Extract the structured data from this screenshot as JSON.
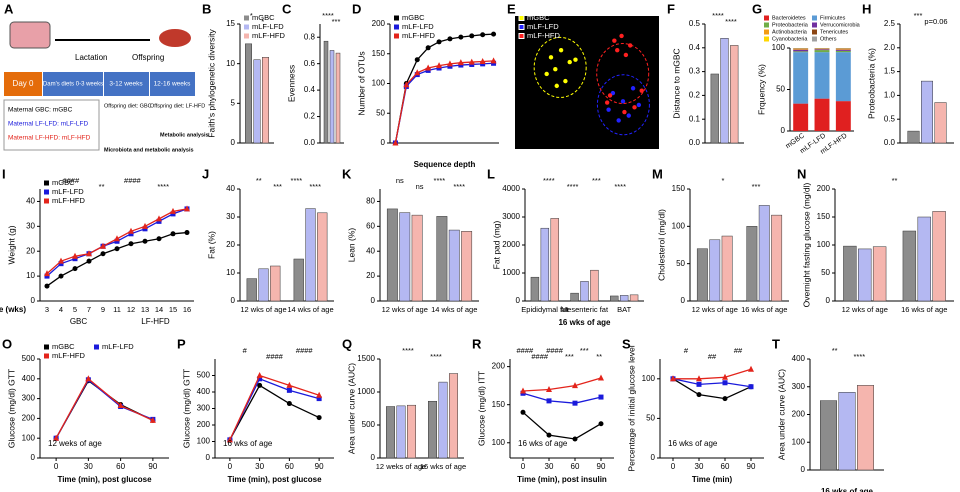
{
  "diagram": {
    "label": "A",
    "lactation": "Lactation",
    "offspring": "Offspring",
    "day0": "Day 0",
    "dam_diets": "Dam's diets 0-3 weeks",
    "weeks_3_12": "3-12 weeks",
    "weeks_12_16": "12-16 weeks",
    "groups": [
      "Maternal GBC: mGBC",
      "Maternal LF-LFD: mLF-LFD",
      "Maternal LF-HFD: mLF-HFD"
    ],
    "offspring_diet_1": "Offspring diet: GBC",
    "offspring_diet_2": "Offspring diet: LF-HFD",
    "analysis_1": "Microbiota and metabolic analysis",
    "analysis_2": "Metabolic analysis"
  },
  "chart_data": [
    {
      "type": "bar",
      "label": "B",
      "ylabel": "Faith's phylogenetic diversity",
      "categories": [
        null
      ],
      "legend": "upper left",
      "series": [
        {
          "name": "mGBC",
          "color": "#8c8c8c",
          "values": [
            12.5
          ]
        },
        {
          "name": "mLF-LFD",
          "color": "#b4b8f2",
          "values": [
            10.5
          ]
        },
        {
          "name": "mLF-HFD",
          "color": "#f5b5ae",
          "values": [
            10.8
          ]
        }
      ],
      "ylim": [
        0,
        15
      ],
      "yticks": [
        0,
        5,
        10,
        15
      ],
      "annotations": [
        "*",
        "*"
      ]
    },
    {
      "type": "bar",
      "label": "C",
      "ylabel": "Evenness",
      "categories": [
        null
      ],
      "series": [
        {
          "color": "#8c8c8c",
          "values": [
            0.77
          ]
        },
        {
          "color": "#b4b8f2",
          "values": [
            0.7
          ]
        },
        {
          "color": "#f5b5ae",
          "values": [
            0.68
          ]
        }
      ],
      "ylim": [
        0,
        0.9
      ],
      "yticks": [
        {
          "value": 0,
          "label": "0.0"
        },
        0.2,
        0.4,
        0.6,
        0.8
      ],
      "annotations": [
        "****",
        "***"
      ]
    },
    {
      "type": "line",
      "label": "D",
      "ylabel": "Number of OTUs",
      "xlabel": "Sequence depth",
      "legend": "upper left",
      "categories": [
        null,
        null,
        null,
        null,
        null,
        null,
        null,
        null,
        null,
        null
      ],
      "series": [
        {
          "name": "mGBC",
          "color": "#000000",
          "marker": "circle",
          "values": [
            0,
            100,
            140,
            160,
            170,
            175,
            178,
            180,
            182,
            183
          ]
        },
        {
          "name": "mLF-LFD",
          "color": "#1a1adb",
          "marker": "square",
          "values": [
            0,
            95,
            115,
            122,
            126,
            129,
            131,
            132,
            133,
            134
          ]
        },
        {
          "name": "mLF-HFD",
          "color": "#e3241b",
          "marker": "triangle",
          "values": [
            0,
            98,
            118,
            126,
            130,
            133,
            135,
            136,
            137,
            138
          ]
        }
      ],
      "ylim": [
        0,
        200
      ],
      "yticks": [
        0,
        50,
        100,
        150,
        200
      ]
    },
    {
      "type": "scatter",
      "label": "E",
      "legend": "upper left",
      "series": [
        {
          "name": "mGBC",
          "color": "#ffff00",
          "x": [
            2.5,
            3.2,
            2.8,
            3.8,
            2.2,
            3.5,
            4.2,
            2.9
          ],
          "y": [
            7.2,
            7.8,
            6.2,
            6.8,
            5.8,
            5.2,
            7.0,
            4.8
          ]
        },
        {
          "name": "mLF-LFD",
          "color": "#2222ff",
          "x": [
            6.8,
            7.5,
            8.2,
            6.5,
            7.9,
            8.6,
            7.2
          ],
          "y": [
            4.2,
            3.5,
            4.6,
            2.8,
            2.3,
            3.2,
            1.9
          ]
        },
        {
          "name": "mLF-HFD",
          "color": "#ff2020",
          "x": [
            6.9,
            7.4,
            8.0,
            7.7,
            7.1,
            6.6,
            8.3,
            7.6,
            6.4,
            8.8
          ],
          "y": [
            8.6,
            9.0,
            8.2,
            7.4,
            7.8,
            4.0,
            3.0,
            2.6,
            3.4,
            4.4
          ]
        }
      ],
      "xlim": [
        0,
        10
      ],
      "ylim": [
        0,
        10
      ]
    },
    {
      "type": "bar",
      "label": "F",
      "ylabel": "Distance to mGBC",
      "categories": [
        null
      ],
      "series": [
        {
          "color": "#8c8c8c",
          "values": [
            0.29
          ]
        },
        {
          "color": "#b4b8f2",
          "values": [
            0.44
          ]
        },
        {
          "color": "#f5b5ae",
          "values": [
            0.41
          ]
        }
      ],
      "ylim": [
        0,
        0.5
      ],
      "yticks": [
        {
          "value": 0,
          "label": "0.0"
        },
        0.1,
        0.2,
        0.3,
        0.4,
        0.5
      ],
      "annotations": [
        "****",
        "****"
      ]
    },
    {
      "type": "stacked_bar",
      "label": "G",
      "ylabel": "Frquency (%)",
      "categories": [
        "mGBC",
        "mLF-LFD",
        "mLF-HFD"
      ],
      "legend": "top",
      "series": [
        {
          "name": "Bacteroidetes",
          "color": "#e02020",
          "values": [
            33,
            39,
            36
          ]
        },
        {
          "name": "Firmicutes",
          "color": "#5b9bd5",
          "values": [
            62,
            56,
            59
          ]
        },
        {
          "name": "Proteobacteria",
          "color": "#70ad47",
          "values": [
            1,
            2.5,
            1.5
          ]
        },
        {
          "name": "Verrucomicrobia",
          "color": "#7030a0",
          "values": [
            2,
            1,
            1.5
          ]
        },
        {
          "name": "Actinobacteria",
          "color": "#f39c12",
          "values": [
            1,
            0.5,
            1
          ]
        },
        {
          "name": "Tenericutes",
          "color": "#8b4513",
          "values": [
            0.5,
            0.5,
            0.5
          ]
        },
        {
          "name": "Cyanobacteria",
          "color": "#ffd700",
          "values": [
            0.3,
            0.3,
            0.3
          ]
        },
        {
          "name": "Others",
          "color": "#a0a0a0",
          "values": [
            0.2,
            0.2,
            0.2
          ]
        }
      ],
      "ylim": [
        0,
        100
      ],
      "yticks": [
        0,
        50,
        100
      ]
    },
    {
      "type": "bar",
      "label": "H",
      "ylabel": "Proteobacteria (%)",
      "categories": [
        null
      ],
      "series": [
        {
          "color": "#8c8c8c",
          "values": [
            0.25
          ]
        },
        {
          "color": "#b4b8f2",
          "values": [
            1.3
          ]
        },
        {
          "color": "#f5b5ae",
          "values": [
            0.85
          ]
        }
      ],
      "ylim": [
        0,
        2.5
      ],
      "yticks": [
        {
          "value": 0,
          "label": "0.0"
        },
        0.5,
        {
          "value": 1,
          "label": "1.0"
        },
        1.5,
        {
          "value": 2,
          "label": "2.0"
        },
        2.5
      ],
      "annotations": [
        "***",
        "p=0.06"
      ]
    },
    {
      "type": "line",
      "label": "I",
      "ylabel": "Weight (g)",
      "xlabel": "Age (wks)",
      "legend": "upper left",
      "categories": [
        "3",
        "4",
        "5",
        "7",
        "9",
        "11",
        "12",
        "13",
        "14",
        "15",
        "16"
      ],
      "xgroups": [
        "GBC",
        "LF-HFD"
      ],
      "series": [
        {
          "name": "mGBC",
          "color": "#000000",
          "marker": "circle",
          "values": [
            6,
            10,
            13,
            16,
            19,
            21,
            23,
            24,
            25,
            27,
            27.5
          ]
        },
        {
          "name": "mLF-LFD",
          "color": "#1a1adb",
          "marker": "square",
          "values": [
            10,
            15,
            17,
            19,
            22,
            24,
            27,
            29,
            32,
            35,
            37
          ]
        },
        {
          "name": "mLF-HFD",
          "color": "#e3241b",
          "marker": "triangle",
          "values": [
            11,
            16,
            18,
            19,
            22,
            25,
            28,
            30,
            33,
            36,
            37
          ]
        }
      ],
      "ylim": [
        0,
        45
      ],
      "yticks": [
        0,
        10,
        20,
        30,
        40
      ],
      "annotations": [
        "####",
        "**",
        "####",
        "****"
      ]
    },
    {
      "type": "bar",
      "label": "J",
      "ylabel": "Fat (%)",
      "categories": [
        "12 wks of age",
        "14 wks of age"
      ],
      "series": [
        {
          "color": "#8c8c8c",
          "values": [
            8,
            15
          ]
        },
        {
          "color": "#b4b8f2",
          "values": [
            11.5,
            33
          ]
        },
        {
          "color": "#f5b5ae",
          "values": [
            12.5,
            31.5
          ]
        }
      ],
      "ylim": [
        0,
        40
      ],
      "yticks": [
        0,
        10,
        20,
        30,
        40
      ],
      "annotations": [
        "**",
        "***",
        "****",
        "****"
      ]
    },
    {
      "type": "bar",
      "label": "K",
      "ylabel": "Lean (%)",
      "categories": [
        "12 wks of age",
        "14 wks of age"
      ],
      "series": [
        {
          "color": "#8c8c8c",
          "values": [
            74,
            68
          ]
        },
        {
          "color": "#b4b8f2",
          "values": [
            71,
            57
          ]
        },
        {
          "color": "#f5b5ae",
          "values": [
            69,
            56
          ]
        }
      ],
      "ylim": [
        0,
        90
      ],
      "yticks": [
        0,
        20,
        40,
        60,
        80
      ],
      "annotations": [
        "ns",
        "ns",
        "****",
        "****"
      ]
    },
    {
      "type": "bar",
      "label": "L",
      "ylabel": "Fat pad (mg)",
      "xlabel": "16 wks of age",
      "categories": [
        "Epididymal fat",
        "Mesenteric fat",
        "BAT"
      ],
      "series": [
        {
          "color": "#8c8c8c",
          "values": [
            850,
            280,
            180
          ]
        },
        {
          "color": "#b4b8f2",
          "values": [
            2600,
            700,
            200
          ]
        },
        {
          "color": "#f5b5ae",
          "values": [
            2950,
            1100,
            220
          ]
        }
      ],
      "ylim": [
        0,
        4000
      ],
      "yticks": [
        0,
        1000,
        2000,
        3000,
        4000
      ],
      "annotations": [
        "****",
        "****",
        "***",
        "****"
      ]
    },
    {
      "type": "bar",
      "label": "M",
      "ylabel": "Cholesterol (mg/dl)",
      "categories": [
        "12 wks of age",
        "16 wks of age"
      ],
      "series": [
        {
          "color": "#8c8c8c",
          "values": [
            70,
            100
          ]
        },
        {
          "color": "#b4b8f2",
          "values": [
            82,
            128
          ]
        },
        {
          "color": "#f5b5ae",
          "values": [
            87,
            115
          ]
        }
      ],
      "ylim": [
        0,
        150
      ],
      "yticks": [
        0,
        50,
        100,
        150
      ],
      "annotations": [
        "*",
        "***"
      ]
    },
    {
      "type": "bar",
      "label": "N",
      "ylabel": "Overnight fasting glucose (mg/dl)",
      "categories": [
        "12 wks of age",
        "16 wks of age"
      ],
      "series": [
        {
          "color": "#8c8c8c",
          "values": [
            98,
            125
          ]
        },
        {
          "color": "#b4b8f2",
          "values": [
            93,
            150
          ]
        },
        {
          "color": "#f5b5ae",
          "values": [
            97,
            160
          ]
        }
      ],
      "ylim": [
        0,
        200
      ],
      "yticks": [
        0,
        50,
        100,
        150,
        200
      ],
      "annotations": [
        "**"
      ]
    },
    {
      "type": "line",
      "label": "O",
      "ylabel": "Glucose (mg/dl) GTT",
      "xlabel": "Time (min), post glucose",
      "legend": "top",
      "notes": [
        "12 weks of age"
      ],
      "x": [
        0,
        30,
        60,
        90
      ],
      "xlim": [
        -15,
        105
      ],
      "xticks": [
        0,
        30,
        60,
        90
      ],
      "series": [
        {
          "name": "mGBC",
          "color": "#000000",
          "marker": "circle",
          "values": [
            100,
            390,
            270,
            190
          ]
        },
        {
          "name": "mLF-LFD",
          "color": "#1a1adb",
          "marker": "square",
          "values": [
            100,
            395,
            260,
            195
          ]
        },
        {
          "name": "mLF-HFD",
          "color": "#e3241b",
          "marker": "triangle",
          "values": [
            100,
            400,
            265,
            190
          ]
        }
      ],
      "ylim": [
        0,
        500
      ],
      "yticks": [
        0,
        100,
        200,
        300,
        400,
        500
      ]
    },
    {
      "type": "line",
      "label": "P",
      "ylabel": "Glucose (mg/dl) GTT",
      "xlabel": "Time (min), post glucose",
      "notes": [
        "16 wks of age"
      ],
      "x": [
        0,
        30,
        60,
        90
      ],
      "xlim": [
        -15,
        105
      ],
      "xticks": [
        0,
        30,
        60,
        90
      ],
      "series": [
        {
          "color": "#000000",
          "marker": "circle",
          "values": [
            110,
            440,
            330,
            245
          ]
        },
        {
          "color": "#1a1adb",
          "marker": "square",
          "values": [
            110,
            480,
            410,
            360
          ]
        },
        {
          "color": "#e3241b",
          "marker": "triangle",
          "values": [
            110,
            500,
            440,
            380
          ]
        }
      ],
      "ylim": [
        0,
        600
      ],
      "yticks": [
        0,
        100,
        200,
        300,
        400,
        500
      ],
      "annotations": [
        "#",
        "####",
        "####"
      ]
    },
    {
      "type": "bar",
      "label": "Q",
      "ylabel": "Area under curve (AUC)",
      "categories": [
        "12 weks of age",
        "16 wks of age"
      ],
      "series": [
        {
          "color": "#8c8c8c",
          "values": [
            780,
            860
          ]
        },
        {
          "color": "#b4b8f2",
          "values": [
            790,
            1150
          ]
        },
        {
          "color": "#f5b5ae",
          "values": [
            800,
            1280
          ]
        }
      ],
      "ylim": [
        0,
        1500
      ],
      "yticks": [
        0,
        500,
        1000,
        1500
      ],
      "annotations": [
        "****",
        "****"
      ]
    },
    {
      "type": "line",
      "label": "R",
      "ylabel": "Glucose (mg/dl) ITT",
      "xlabel": "Time (min), post insulin",
      "notes": [
        "16 wks of age"
      ],
      "x": [
        0,
        30,
        60,
        90
      ],
      "xlim": [
        -15,
        105
      ],
      "xticks": [
        0,
        30,
        60,
        90
      ],
      "series": [
        {
          "color": "#000000",
          "marker": "circle",
          "values": [
            140,
            110,
            105,
            125
          ]
        },
        {
          "color": "#1a1adb",
          "marker": "square",
          "values": [
            165,
            155,
            152,
            160
          ]
        },
        {
          "color": "#e3241b",
          "marker": "triangle",
          "values": [
            168,
            170,
            175,
            185
          ]
        }
      ],
      "ylim": [
        80,
        210
      ],
      "yticks": [
        100,
        150,
        200
      ],
      "annotations": [
        "####",
        "####",
        "####",
        "***",
        "***",
        "**"
      ]
    },
    {
      "type": "line",
      "label": "S",
      "ylabel": "Percentage of initial glucose level",
      "xlabel": "Time (min)",
      "notes": [
        "16 wks of age"
      ],
      "x": [
        0,
        30,
        60,
        90
      ],
      "xlim": [
        -15,
        105
      ],
      "xticks": [
        0,
        30,
        60,
        90
      ],
      "series": [
        {
          "color": "#000000",
          "marker": "circle",
          "values": [
            100,
            80,
            75,
            90
          ]
        },
        {
          "color": "#1a1adb",
          "marker": "square",
          "values": [
            100,
            93,
            95,
            90
          ]
        },
        {
          "color": "#e3241b",
          "marker": "triangle",
          "values": [
            100,
            100,
            102,
            112
          ]
        }
      ],
      "ylim": [
        0,
        125
      ],
      "yticks": [
        0,
        50,
        100
      ],
      "annotations": [
        "#",
        "##",
        "##"
      ]
    },
    {
      "type": "bar",
      "label": "T",
      "ylabel": "Area under curve (AUC)",
      "xlabel": "16 wks of age",
      "categories": [
        null
      ],
      "series": [
        {
          "color": "#8c8c8c",
          "values": [
            250
          ]
        },
        {
          "color": "#b4b8f2",
          "values": [
            280
          ]
        },
        {
          "color": "#f5b5ae",
          "values": [
            305
          ]
        }
      ],
      "ylim": [
        0,
        400
      ],
      "yticks": [
        0,
        100,
        200,
        300,
        400
      ],
      "annotations": [
        "**",
        "****"
      ]
    }
  ]
}
